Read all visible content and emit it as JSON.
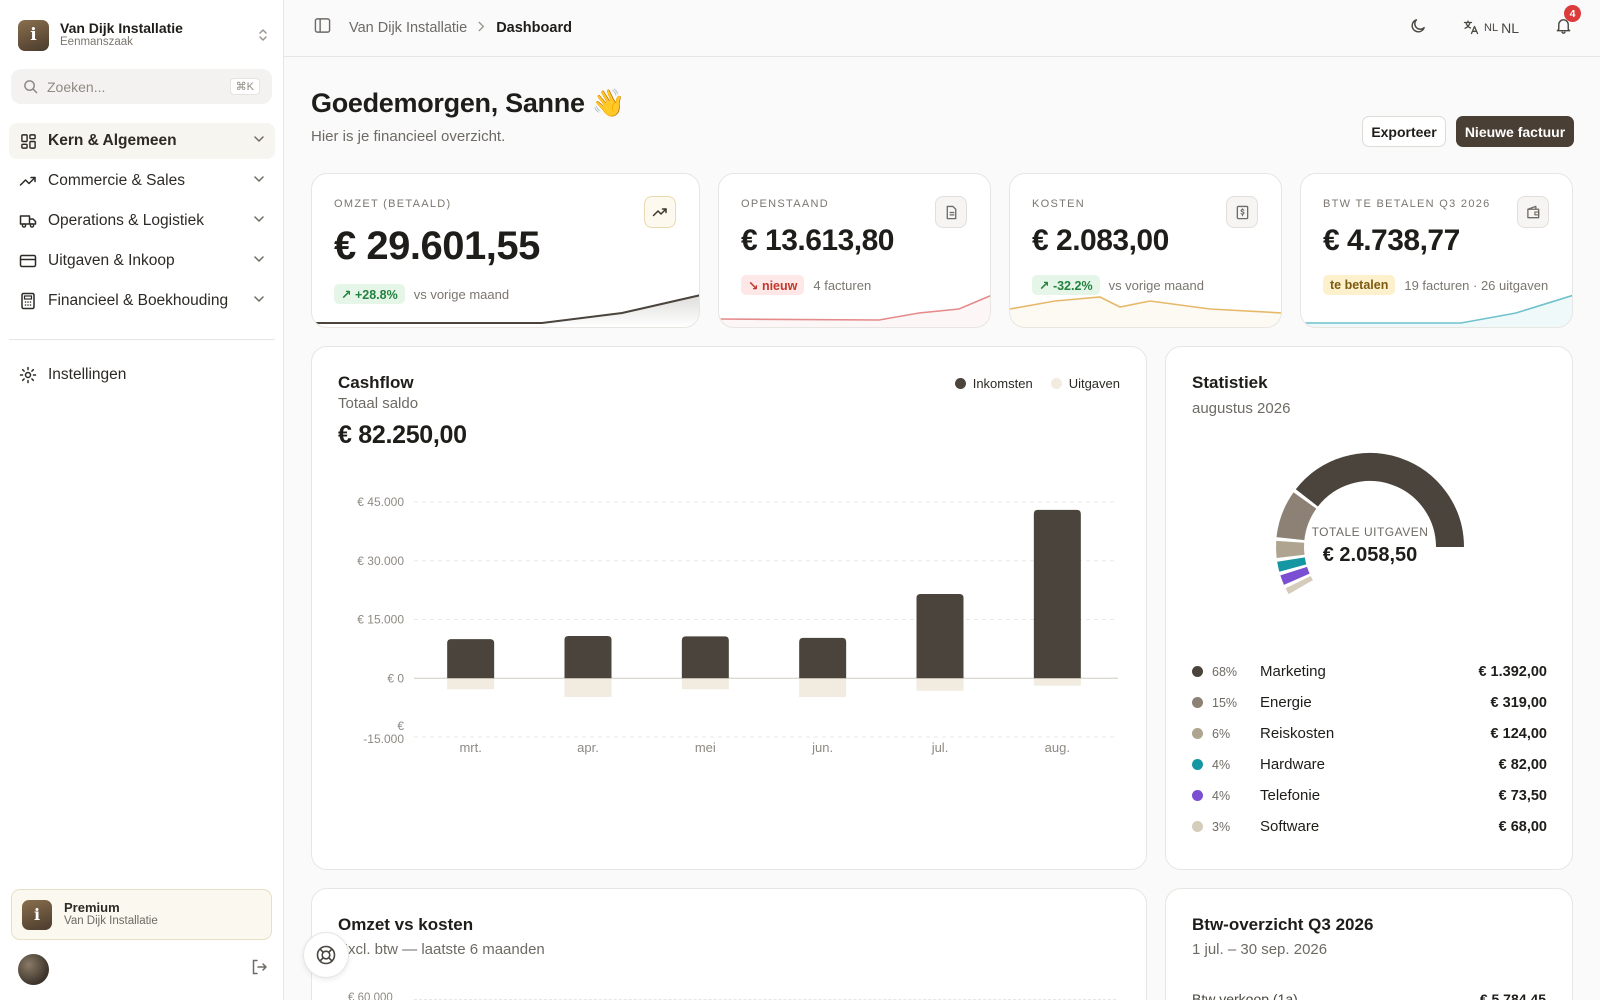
{
  "org": {
    "name": "Van Dijk Installatie",
    "type": "Eenmanszaak",
    "logo_letter": "i"
  },
  "search": {
    "placeholder": "Zoeken...",
    "shortcut": "⌘K"
  },
  "nav": {
    "items": [
      {
        "label": "Kern & Algemeen",
        "icon": "grid-icon"
      },
      {
        "label": "Commercie & Sales",
        "icon": "trend-up-icon"
      },
      {
        "label": "Operations & Logistiek",
        "icon": "truck-icon"
      },
      {
        "label": "Uitgaven & Inkoop",
        "icon": "card-icon"
      },
      {
        "label": "Financieel & Boekhouding",
        "icon": "calculator-icon"
      }
    ],
    "settings": "Instellingen"
  },
  "plan": {
    "title": "Premium",
    "org": "Van Dijk Installatie"
  },
  "breadcrumb": {
    "parent": "Van Dijk Installatie",
    "current": "Dashboard"
  },
  "topbar": {
    "lang_small": "NL",
    "lang": "NL",
    "notifications": "4"
  },
  "header": {
    "greeting": "Goedemorgen, Sanne 👋",
    "subtitle": "Hier is je financieel overzicht.",
    "export_label": "Exporteer",
    "new_invoice_label": "Nieuwe factuur"
  },
  "kpis": [
    {
      "label": "Omzet (betaald)",
      "value": "€ 29.601,55",
      "pill": "↗ +28.8%",
      "pill_type": "green",
      "note": "vs vorige maand",
      "spark_color": "#4a443c"
    },
    {
      "label": "Openstaand",
      "value": "€ 13.613,80",
      "pill": "↘ nieuw",
      "pill_type": "red",
      "note": "4 facturen",
      "spark_color": "#e48a8a"
    },
    {
      "label": "Kosten",
      "value": "€ 2.083,00",
      "pill": "↗ -32.2%",
      "pill_type": "green",
      "note": "vs vorige maand",
      "spark_color": "#e6b96a"
    },
    {
      "label": "BTW te betalen Q3 2026",
      "value": "€ 4.738,77",
      "pill": "te betalen",
      "pill_type": "amber",
      "note": "19 facturen · 26 uitgaven",
      "spark_color": "#6fc2cc"
    }
  ],
  "cashflow": {
    "title": "Cashflow",
    "subtitle": "Totaal saldo",
    "total": "€ 82.250,00",
    "legend": [
      "Inkomsten",
      "Uitgaven"
    ]
  },
  "chart_data": {
    "type": "bar",
    "title": "Cashflow",
    "categories": [
      "mrt.",
      "apr.",
      "mei",
      "jun.",
      "jul.",
      "aug."
    ],
    "series": [
      {
        "name": "Inkomsten",
        "values": [
          10000,
          10800,
          10700,
          10300,
          21500,
          43000
        ],
        "color": "#4a443c"
      },
      {
        "name": "Uitgaven",
        "values": [
          -2800,
          -4800,
          -2800,
          -4800,
          -3200,
          -1900
        ],
        "color": "#f1ebe0"
      }
    ],
    "yticks": [
      "€ 45.000",
      "€ 30.000",
      "€ 15.000",
      "€ 0",
      "€ -15.000"
    ],
    "ylim": [
      -15000,
      45000
    ],
    "grid": true,
    "legend_position": "top-right"
  },
  "stats": {
    "title": "Statistiek",
    "period": "augustus 2026",
    "center_label": "TOTALE UITGAVEN",
    "center_value": "€ 2.058,50",
    "items": [
      {
        "pct": "68%",
        "name": "Marketing",
        "amount": "€ 1.392,00",
        "color": "#4a443c",
        "share": 68
      },
      {
        "pct": "15%",
        "name": "Energie",
        "amount": "€ 319,00",
        "color": "#8d8175",
        "share": 15
      },
      {
        "pct": "6%",
        "name": "Reiskosten",
        "amount": "€ 124,00",
        "color": "#aea48f",
        "share": 6
      },
      {
        "pct": "4%",
        "name": "Hardware",
        "amount": "€ 82,00",
        "color": "#1596a3",
        "share": 4
      },
      {
        "pct": "4%",
        "name": "Telefonie",
        "amount": "€ 73,50",
        "color": "#7b4fd1",
        "share": 4
      },
      {
        "pct": "3%",
        "name": "Software",
        "amount": "€ 68,00",
        "color": "#d6ccbc",
        "share": 3
      }
    ]
  },
  "omzet_kosten": {
    "title": "Omzet vs kosten",
    "subtitle": "Excl. btw — laatste 6 maanden",
    "first_tick": "€ 60.000"
  },
  "btw": {
    "title": "Btw-overzicht Q3 2026",
    "period": "1 jul. – 30 sep. 2026",
    "row_label": "Btw verkoop (1a)",
    "row_value": "€ 5.784,45"
  }
}
